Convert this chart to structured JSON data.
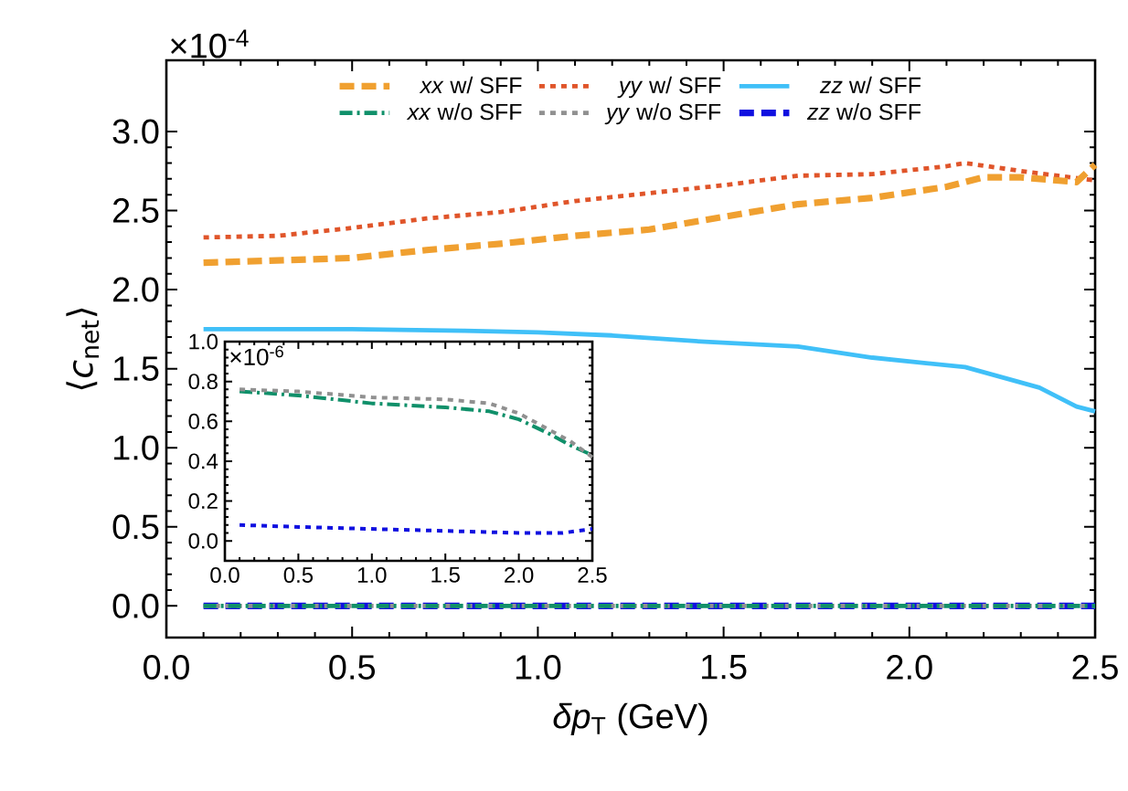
{
  "chart_data": [
    {
      "type": "line",
      "xlabel": "*δp*$_{T}$ (GeV)",
      "ylabel": "⟨*c*$_{net}$⟩",
      "annotations": [
        "×10$^{-4}$"
      ],
      "xlim": [
        0,
        2.5
      ],
      "ylim": [
        -0.2,
        3.45
      ],
      "xticks": [
        {
          "value": 0,
          "label": "0.0"
        },
        0.5,
        {
          "value": 1,
          "label": "1.0"
        },
        1.5,
        {
          "value": 2,
          "label": "2.0"
        },
        2.5
      ],
      "yticks": [
        {
          "value": 0,
          "label": "0.0"
        },
        0.5,
        {
          "value": 1,
          "label": "1.0"
        },
        1.5,
        {
          "value": 2,
          "label": "2.0"
        },
        2.5,
        {
          "value": 3,
          "label": "3.0"
        }
      ],
      "legend": "top",
      "grid": false,
      "series": [
        {
          "name": "*xx* w/ SFF",
          "color": "#f0a030",
          "line_style": "dashed",
          "x": [
            0.1,
            0.5,
            0.7,
            0.9,
            1.1,
            1.3,
            1.5,
            1.7,
            1.9,
            2.1,
            2.2,
            2.3,
            2.45,
            2.5
          ],
          "values": [
            2.17,
            2.2,
            2.25,
            2.29,
            2.34,
            2.38,
            2.46,
            2.54,
            2.58,
            2.65,
            2.71,
            2.71,
            2.68,
            2.79
          ]
        },
        {
          "name": "*yy* w/ SFF",
          "color": "#e0552a",
          "line_style": "dotted",
          "x": [
            0.1,
            0.3,
            0.5,
            0.7,
            0.9,
            1.1,
            1.3,
            1.5,
            1.7,
            1.9,
            2.1,
            2.15,
            2.3,
            2.4,
            2.5
          ],
          "values": [
            2.33,
            2.34,
            2.39,
            2.45,
            2.49,
            2.56,
            2.61,
            2.66,
            2.72,
            2.73,
            2.78,
            2.8,
            2.75,
            2.72,
            2.69
          ]
        },
        {
          "name": "*zz* w/ SFF",
          "color": "#40c0f8",
          "line_style": "solid",
          "x": [
            0.1,
            0.5,
            0.8,
            1.0,
            1.2,
            1.45,
            1.7,
            1.9,
            2.15,
            2.35,
            2.45,
            2.5
          ],
          "values": [
            1.75,
            1.75,
            1.74,
            1.73,
            1.71,
            1.67,
            1.64,
            1.57,
            1.51,
            1.38,
            1.26,
            1.23
          ]
        },
        {
          "name": "*xx* w/o SFF",
          "color": "#10906a",
          "line_style": "dashdot",
          "x": [
            0.1,
            2.5
          ],
          "values": [
            0.0,
            0.0
          ]
        },
        {
          "name": "*yy* w/o SFF",
          "color": "#909090",
          "line_style": "dotted",
          "x": [
            0.1,
            2.5
          ],
          "values": [
            0.0,
            0.0
          ]
        },
        {
          "name": "*zz* w/o SFF",
          "color": "#1010e0",
          "line_style": "dashed",
          "x": [
            0.1,
            2.5
          ],
          "values": [
            0.0,
            0.0
          ]
        }
      ]
    },
    {
      "type": "line",
      "annotations": [
        "×10$^{-6}$"
      ],
      "xlim": [
        0,
        2.5
      ],
      "ylim": [
        -0.1,
        1.0
      ],
      "xticks": [
        {
          "value": 0,
          "label": "0.0"
        },
        0.5,
        {
          "value": 1,
          "label": "1.0"
        },
        1.5,
        {
          "value": 2,
          "label": "2.0"
        },
        2.5
      ],
      "yticks": [
        {
          "value": 0,
          "label": "0.0"
        },
        0.2,
        0.4,
        0.6,
        0.8,
        {
          "value": 1,
          "label": "1.0"
        }
      ],
      "grid": false,
      "series": [
        {
          "color": "#909090",
          "line_style": "dotted",
          "x": [
            0.1,
            0.5,
            1.0,
            1.5,
            1.8,
            2.0,
            2.2,
            2.35,
            2.5
          ],
          "values": [
            0.76,
            0.75,
            0.72,
            0.71,
            0.69,
            0.64,
            0.56,
            0.5,
            0.42
          ]
        },
        {
          "color": "#10906a",
          "line_style": "dashdot",
          "x": [
            0.1,
            0.5,
            1.0,
            1.5,
            1.8,
            2.0,
            2.2,
            2.35,
            2.5
          ],
          "values": [
            0.75,
            0.73,
            0.69,
            0.67,
            0.65,
            0.61,
            0.54,
            0.48,
            0.43
          ]
        },
        {
          "color": "#1010e0",
          "line_style": "dotted",
          "x": [
            0.1,
            0.5,
            1.0,
            1.5,
            2.0,
            2.3,
            2.5
          ],
          "values": [
            0.08,
            0.07,
            0.06,
            0.05,
            0.04,
            0.04,
            0.06
          ]
        }
      ]
    }
  ]
}
